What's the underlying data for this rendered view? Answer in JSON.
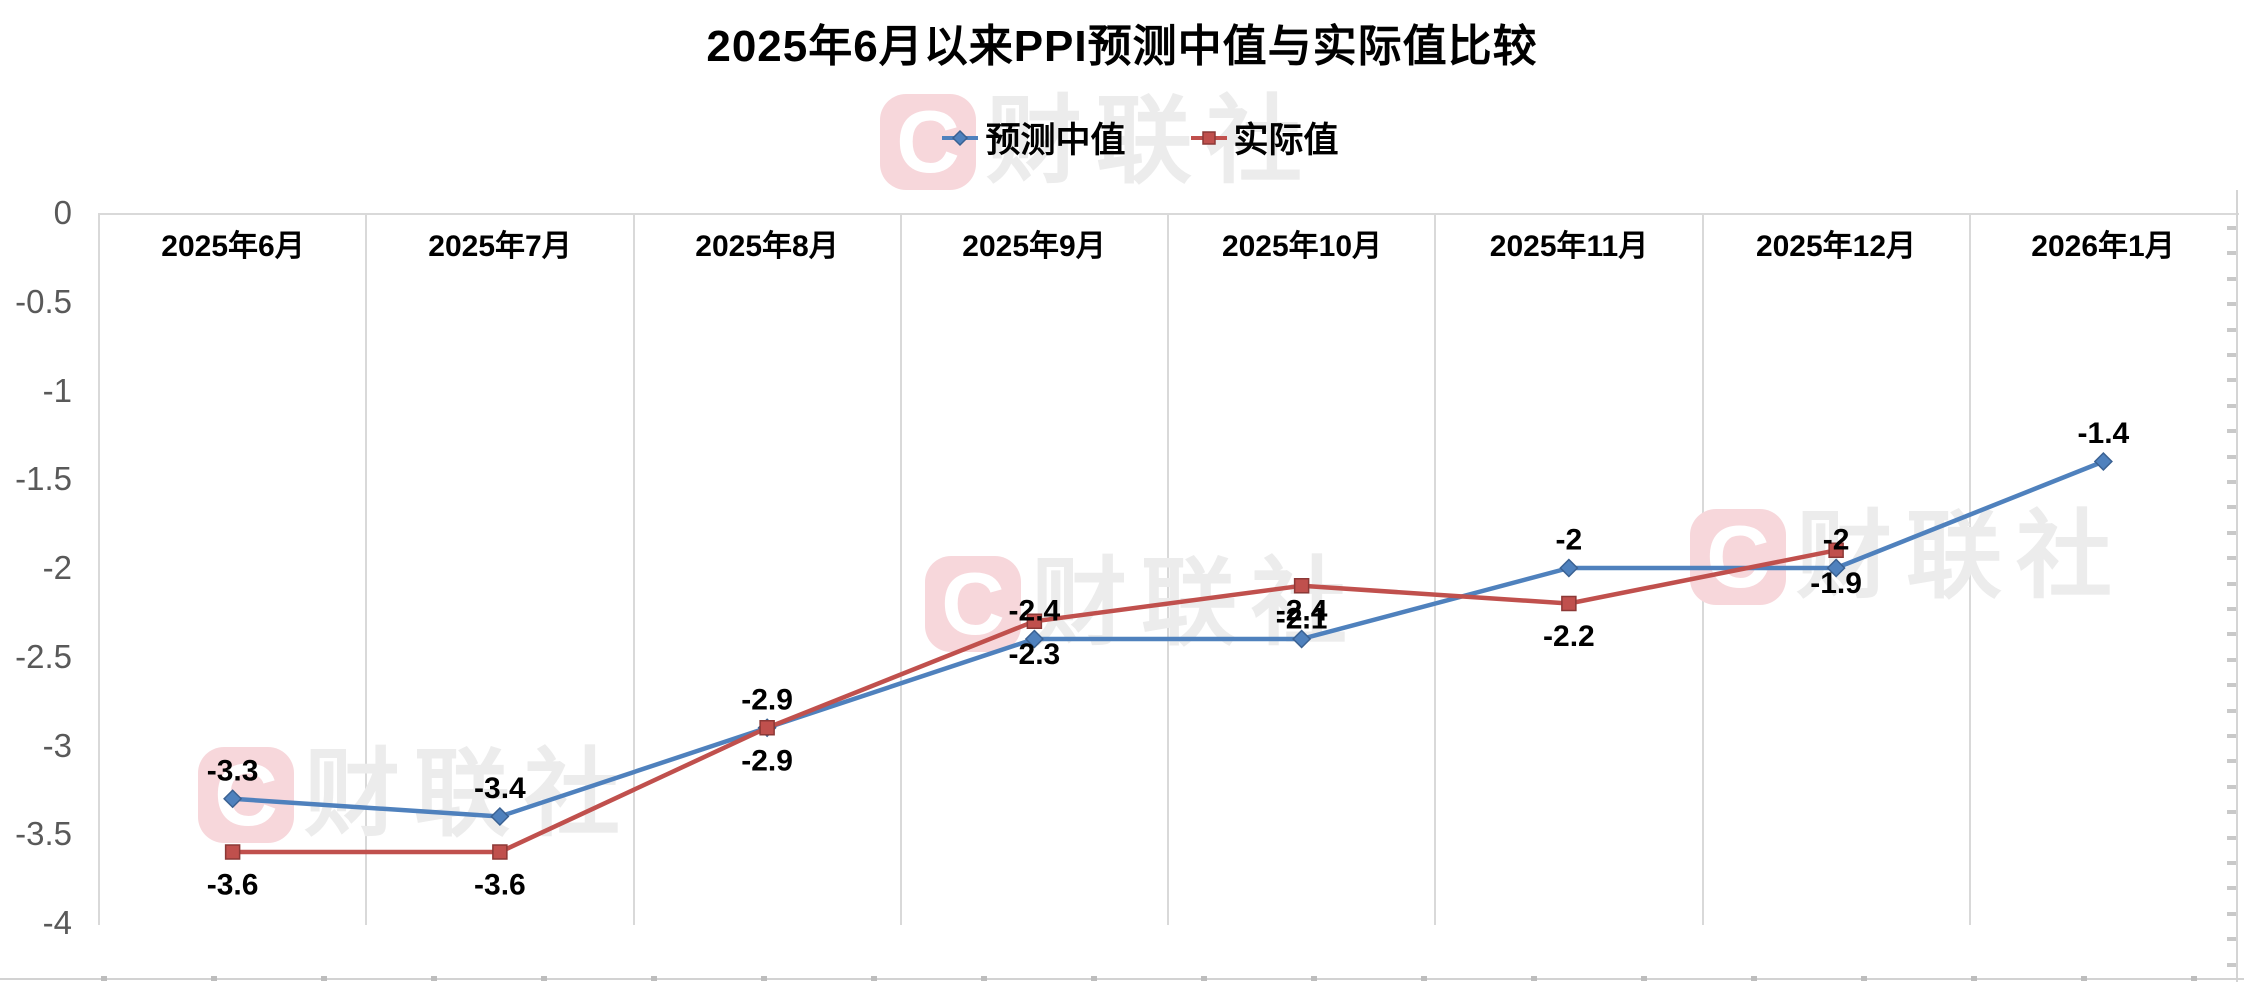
{
  "title": "2025年6月以来PPI预测中值与实际值比较",
  "watermark": {
    "logo_letter": "C",
    "brand": "财联社"
  },
  "chart_data": {
    "type": "line",
    "title": "2025年6月以来PPI预测中值与实际值比较",
    "categories": [
      "2025年6月",
      "2025年7月",
      "2025年8月",
      "2025年9月",
      "2025年10月",
      "2025年11月",
      "2025年12月",
      "2026年1月"
    ],
    "series": [
      {
        "name": "预测中值",
        "color": "#4F81BD",
        "marker_edge": "#3A6192",
        "marker": "diamond",
        "label_position": "above",
        "values": [
          -3.3,
          -3.4,
          -2.9,
          -2.4,
          -2.4,
          -2,
          -2,
          -1.4
        ],
        "labels": [
          "-3.3",
          "-3.4",
          "-2.9",
          "-2.4",
          "-2.4",
          "-2",
          "-2",
          "-1.4"
        ]
      },
      {
        "name": "实际值",
        "color": "#C0504D",
        "marker_edge": "#8C3836",
        "marker": "square",
        "label_position": "below",
        "values": [
          -3.6,
          -3.6,
          -2.9,
          -2.3,
          -2.1,
          -2.2,
          -1.9,
          null
        ],
        "labels": [
          "-3.6",
          "-3.6",
          "-2.9",
          "-2.3",
          "-2.1",
          "-2.2",
          "-1.9",
          null
        ]
      }
    ],
    "y_axis": {
      "ticks": [
        "0",
        "-0.5",
        "-1",
        "-1.5",
        "-2",
        "-2.5",
        "-3",
        "-3.5",
        "-4"
      ],
      "max": 0,
      "min": -4,
      "tick_color": "#595959"
    },
    "grid": "vertical-column-separators-only",
    "legend_position": "top-center",
    "data_label_color": "#000000"
  }
}
